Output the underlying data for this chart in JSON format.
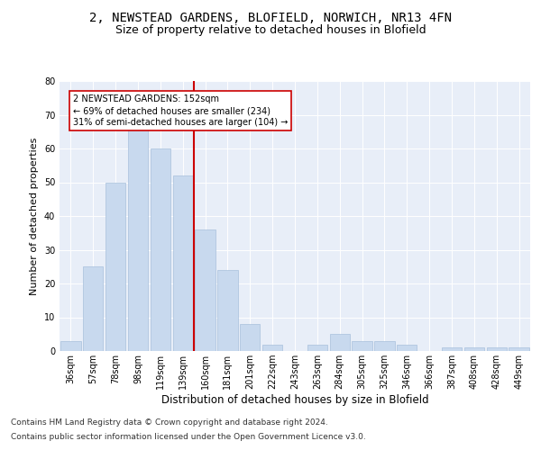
{
  "title1": "2, NEWSTEAD GARDENS, BLOFIELD, NORWICH, NR13 4FN",
  "title2": "Size of property relative to detached houses in Blofield",
  "xlabel": "Distribution of detached houses by size in Blofield",
  "ylabel": "Number of detached properties",
  "categories": [
    "36sqm",
    "57sqm",
    "78sqm",
    "98sqm",
    "119sqm",
    "139sqm",
    "160sqm",
    "181sqm",
    "201sqm",
    "222sqm",
    "243sqm",
    "263sqm",
    "284sqm",
    "305sqm",
    "325sqm",
    "346sqm",
    "366sqm",
    "387sqm",
    "408sqm",
    "428sqm",
    "449sqm"
  ],
  "values": [
    3,
    25,
    50,
    66,
    60,
    52,
    36,
    24,
    8,
    2,
    0,
    2,
    5,
    3,
    3,
    2,
    0,
    1,
    1,
    1,
    1
  ],
  "bar_color": "#c8d9ee",
  "bar_edge_color": "#a8c0dc",
  "vline_color": "#cc0000",
  "annotation_text": "2 NEWSTEAD GARDENS: 152sqm\n← 69% of detached houses are smaller (234)\n31% of semi-detached houses are larger (104) →",
  "annotation_box_color": "#ffffff",
  "annotation_box_edge": "#cc0000",
  "ylim": [
    0,
    80
  ],
  "yticks": [
    0,
    10,
    20,
    30,
    40,
    50,
    60,
    70,
    80
  ],
  "axes_background": "#e8eef8",
  "footer1": "Contains HM Land Registry data © Crown copyright and database right 2024.",
  "footer2": "Contains public sector information licensed under the Open Government Licence v3.0.",
  "title1_fontsize": 10,
  "title2_fontsize": 9,
  "xlabel_fontsize": 8.5,
  "ylabel_fontsize": 8,
  "tick_fontsize": 7,
  "footer_fontsize": 6.5,
  "vline_idx": 5.5
}
